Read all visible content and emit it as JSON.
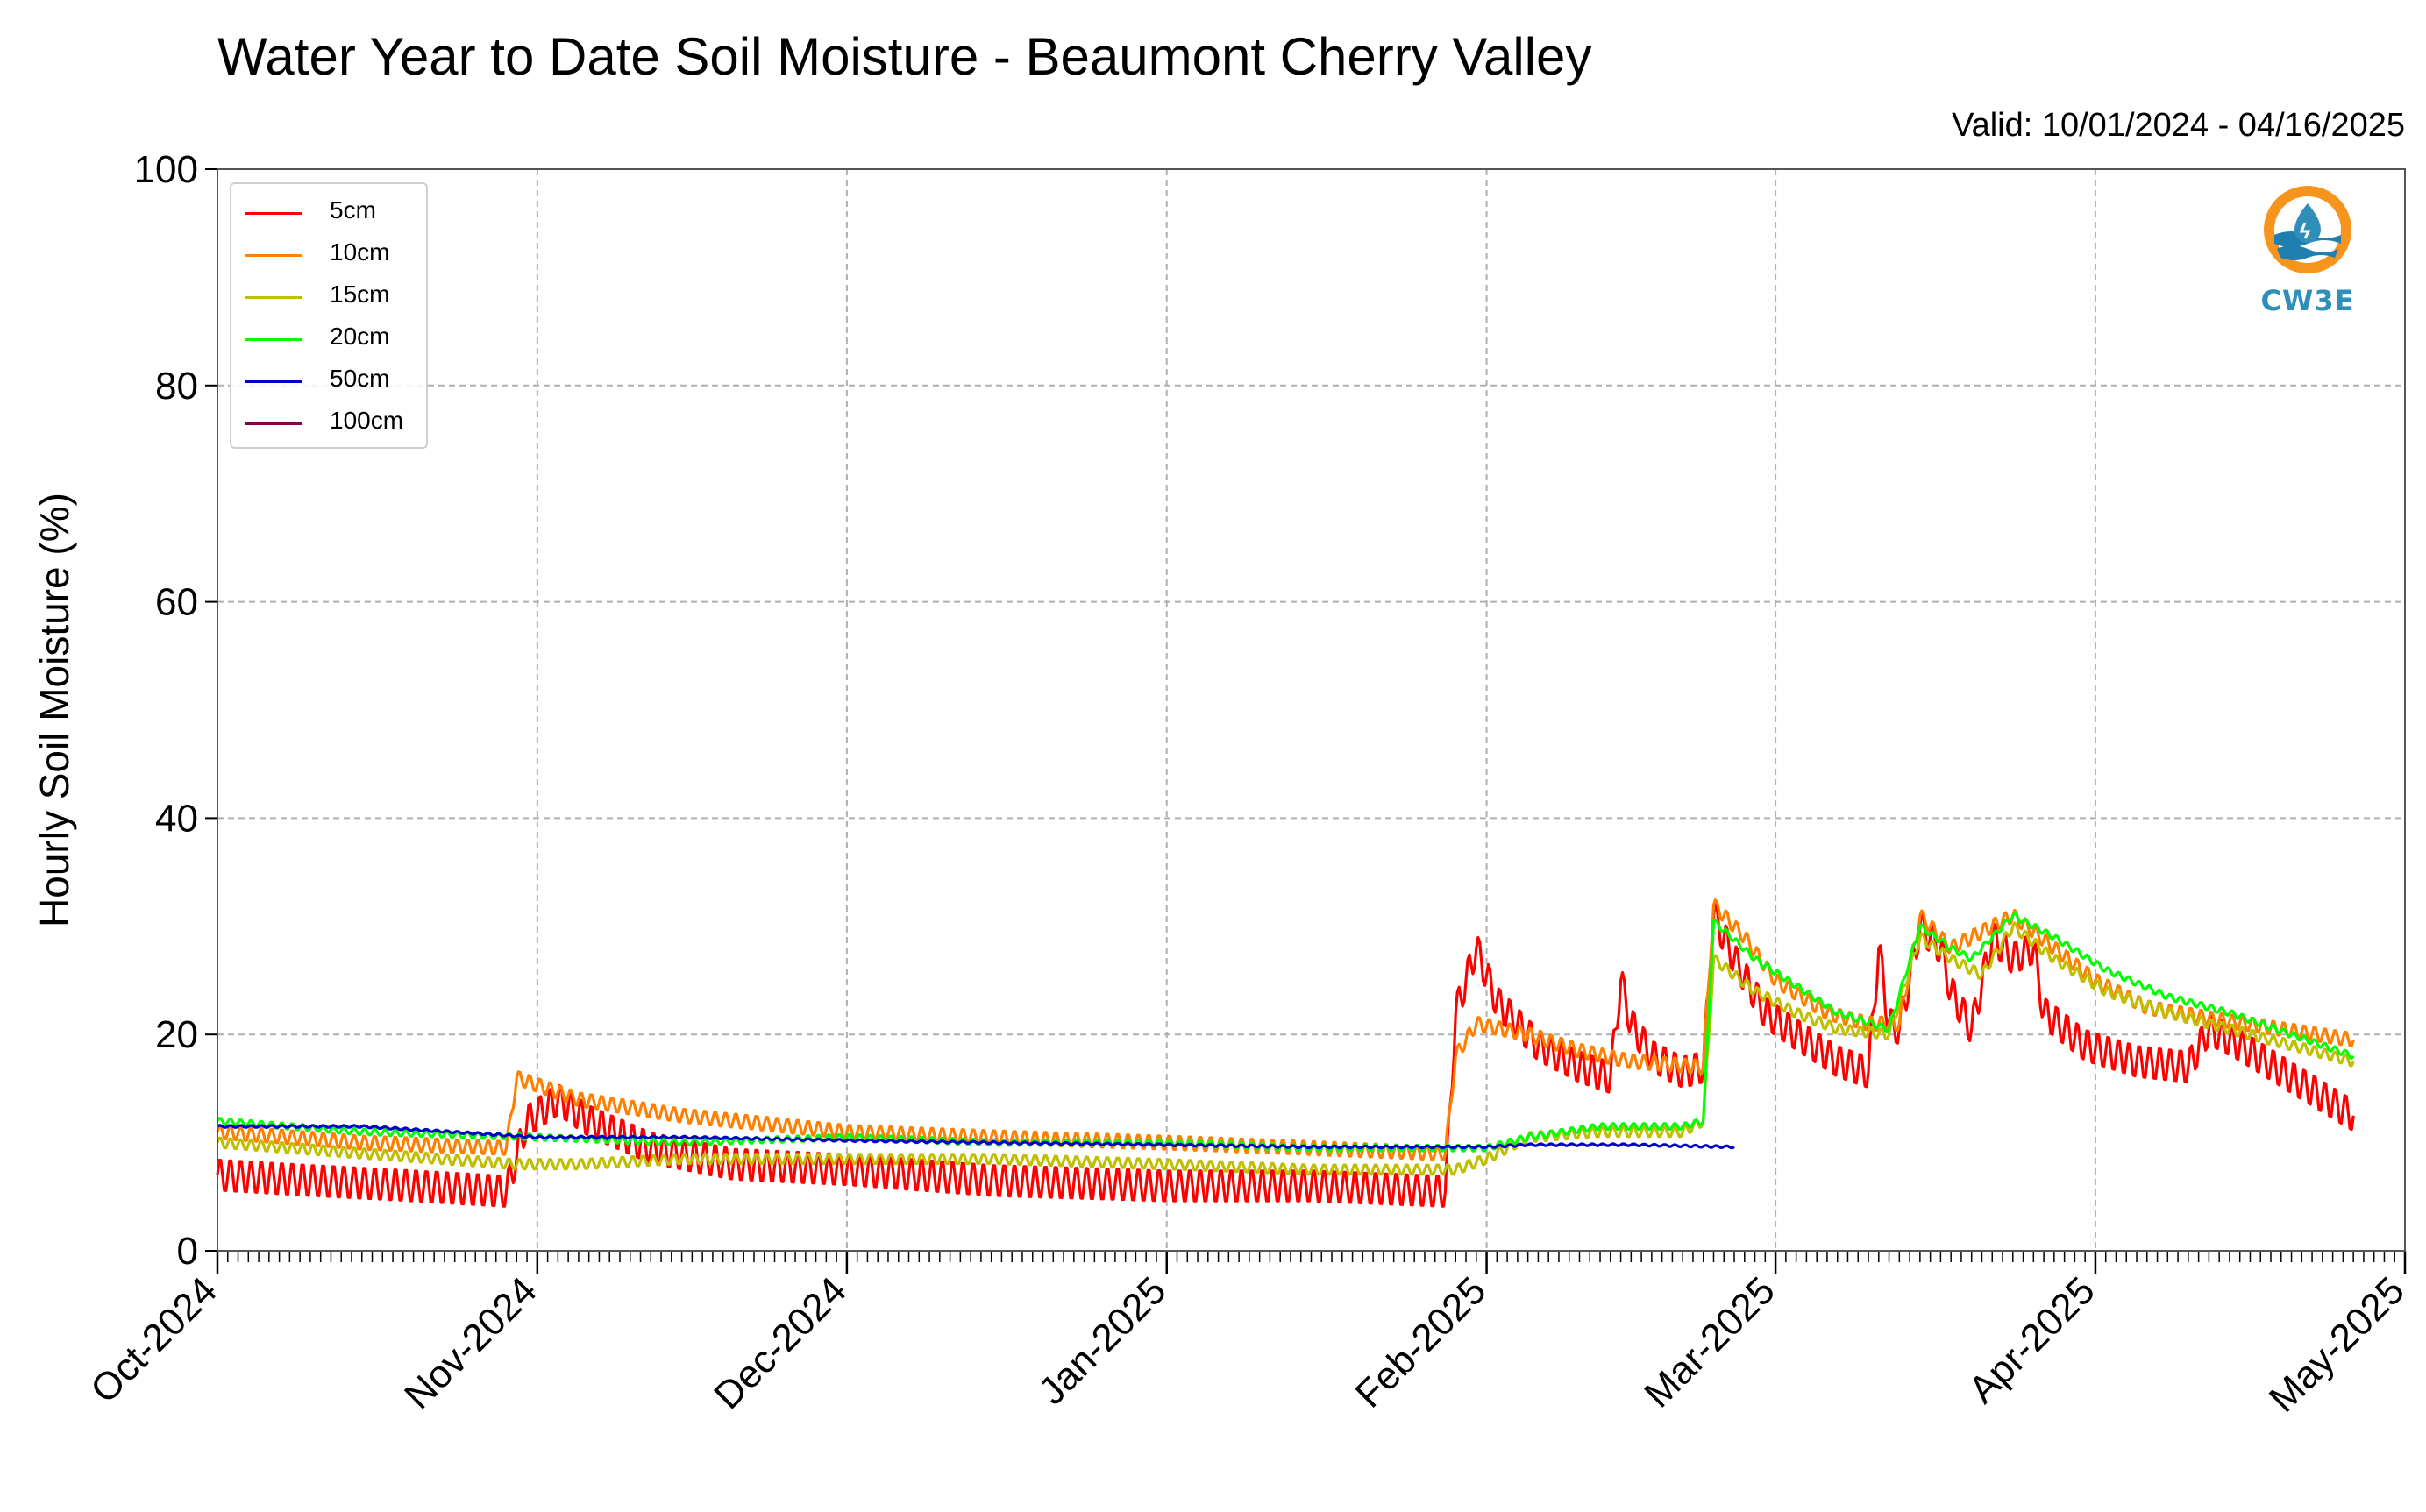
{
  "chart_data": {
    "type": "line",
    "title": "Water Year to Date Soil Moisture - Beaumont Cherry Valley",
    "subtitle": "Valid: 10/01/2024 - 04/16/2025",
    "ylabel": "Hourly Soil Moisture (%)",
    "xlabel": "",
    "ylim": [
      0,
      100
    ],
    "yticks": [
      0,
      20,
      40,
      60,
      80,
      100
    ],
    "xlim": [
      "2024-10-01",
      "2025-05-01"
    ],
    "xticks": [
      {
        "date": "2024-10-01",
        "label": "Oct-2024"
      },
      {
        "date": "2024-11-01",
        "label": "Nov-2024"
      },
      {
        "date": "2024-12-01",
        "label": "Dec-2024"
      },
      {
        "date": "2025-01-01",
        "label": "Jan-2025"
      },
      {
        "date": "2025-02-01",
        "label": "Feb-2025"
      },
      {
        "date": "2025-03-01",
        "label": "Mar-2025"
      },
      {
        "date": "2025-04-01",
        "label": "Apr-2025"
      },
      {
        "date": "2025-05-01",
        "label": "May-2025"
      }
    ],
    "grid": true,
    "legend_position": "top-left",
    "series": [
      {
        "name": "5cm",
        "color": "#ff0000",
        "points": [
          [
            "2024-10-01",
            7
          ],
          [
            "2024-10-10",
            6.5
          ],
          [
            "2024-10-20",
            6
          ],
          [
            "2024-10-29",
            5.5
          ],
          [
            "2024-10-31",
            12
          ],
          [
            "2024-11-03",
            14
          ],
          [
            "2024-11-06",
            12
          ],
          [
            "2024-11-12",
            9.5
          ],
          [
            "2024-11-20",
            8
          ],
          [
            "2024-12-01",
            7.5
          ],
          [
            "2024-12-15",
            6.5
          ],
          [
            "2025-01-01",
            6
          ],
          [
            "2025-01-15",
            6
          ],
          [
            "2025-01-28",
            5.5
          ],
          [
            "2025-01-29",
            22
          ],
          [
            "2025-01-31",
            28
          ],
          [
            "2025-02-02",
            23
          ],
          [
            "2025-02-06",
            19
          ],
          [
            "2025-02-10",
            17
          ],
          [
            "2025-02-13",
            16
          ],
          [
            "2025-02-14",
            25
          ],
          [
            "2025-02-15",
            21
          ],
          [
            "2025-02-17",
            18
          ],
          [
            "2025-02-20",
            16.5
          ],
          [
            "2025-02-22",
            17
          ],
          [
            "2025-02-23",
            31
          ],
          [
            "2025-02-25",
            27
          ],
          [
            "2025-02-28",
            22
          ],
          [
            "2025-03-03",
            20
          ],
          [
            "2025-03-07",
            17.5
          ],
          [
            "2025-03-10",
            16.5
          ],
          [
            "2025-03-11",
            28
          ],
          [
            "2025-03-12",
            21
          ],
          [
            "2025-03-13",
            20.5
          ],
          [
            "2025-03-15",
            30
          ],
          [
            "2025-03-17",
            28
          ],
          [
            "2025-03-18",
            24
          ],
          [
            "2025-03-20",
            20.5
          ],
          [
            "2025-03-22",
            29
          ],
          [
            "2025-03-24",
            27
          ],
          [
            "2025-03-26",
            28
          ],
          [
            "2025-03-27",
            22
          ],
          [
            "2025-03-31",
            19
          ],
          [
            "2025-04-05",
            17.5
          ],
          [
            "2025-04-10",
            17
          ],
          [
            "2025-04-12",
            20.5
          ],
          [
            "2025-04-15",
            19
          ],
          [
            "2025-04-20",
            16
          ],
          [
            "2025-04-26",
            12.5
          ]
        ]
      },
      {
        "name": "10cm",
        "color": "#ff8000",
        "points": [
          [
            "2024-10-01",
            11
          ],
          [
            "2024-10-15",
            10
          ],
          [
            "2024-10-29",
            9.5
          ],
          [
            "2024-10-30",
            16
          ],
          [
            "2024-11-05",
            14
          ],
          [
            "2024-11-15",
            12.5
          ],
          [
            "2024-12-01",
            11
          ],
          [
            "2024-12-15",
            10.5
          ],
          [
            "2025-01-01",
            10
          ],
          [
            "2025-01-15",
            9.5
          ],
          [
            "2025-01-28",
            9
          ],
          [
            "2025-01-29",
            18
          ],
          [
            "2025-01-31",
            21
          ],
          [
            "2025-02-05",
            20
          ],
          [
            "2025-02-10",
            18.5
          ],
          [
            "2025-02-15",
            17.5
          ],
          [
            "2025-02-22",
            17
          ],
          [
            "2025-02-23",
            32
          ],
          [
            "2025-02-26",
            29
          ],
          [
            "2025-03-01",
            25
          ],
          [
            "2025-03-06",
            22
          ],
          [
            "2025-03-10",
            21
          ],
          [
            "2025-03-13",
            21
          ],
          [
            "2025-03-15",
            31
          ],
          [
            "2025-03-18",
            28
          ],
          [
            "2025-03-22",
            30
          ],
          [
            "2025-03-24",
            31
          ],
          [
            "2025-03-28",
            28
          ],
          [
            "2025-04-01",
            25
          ],
          [
            "2025-04-06",
            22.5
          ],
          [
            "2025-04-12",
            21.5
          ],
          [
            "2025-04-19",
            20.5
          ],
          [
            "2025-04-26",
            19.5
          ]
        ]
      },
      {
        "name": "15cm",
        "color": "#bfbf00",
        "points": [
          [
            "2024-10-01",
            10
          ],
          [
            "2024-10-15",
            9
          ],
          [
            "2024-10-30",
            8
          ],
          [
            "2024-11-05",
            8
          ],
          [
            "2024-11-15",
            8.5
          ],
          [
            "2024-12-01",
            8.5
          ],
          [
            "2024-12-15",
            8.5
          ],
          [
            "2025-01-01",
            8
          ],
          [
            "2025-01-15",
            7.5
          ],
          [
            "2025-01-29",
            7.5
          ],
          [
            "2025-02-01",
            8.5
          ],
          [
            "2025-02-05",
            10.5
          ],
          [
            "2025-02-12",
            11
          ],
          [
            "2025-02-20",
            11
          ],
          [
            "2025-02-22",
            12
          ],
          [
            "2025-02-23",
            27
          ],
          [
            "2025-02-27",
            24
          ],
          [
            "2025-03-03",
            22
          ],
          [
            "2025-03-07",
            20.5
          ],
          [
            "2025-03-12",
            20
          ],
          [
            "2025-03-15",
            29
          ],
          [
            "2025-03-18",
            27
          ],
          [
            "2025-03-21",
            25.5
          ],
          [
            "2025-03-24",
            30
          ],
          [
            "2025-03-28",
            27
          ],
          [
            "2025-04-02",
            24
          ],
          [
            "2025-04-08",
            22
          ],
          [
            "2025-04-14",
            20.5
          ],
          [
            "2025-04-20",
            19
          ],
          [
            "2025-04-26",
            17.5
          ]
        ]
      },
      {
        "name": "20cm",
        "color": "#00ff00",
        "points": [
          [
            "2024-10-01",
            12
          ],
          [
            "2024-10-15",
            11
          ],
          [
            "2024-11-01",
            10.5
          ],
          [
            "2024-11-15",
            10
          ],
          [
            "2024-12-01",
            10.5
          ],
          [
            "2024-12-15",
            10
          ],
          [
            "2025-01-01",
            10
          ],
          [
            "2025-01-15",
            9.5
          ],
          [
            "2025-01-29",
            9.5
          ],
          [
            "2025-02-01",
            9.5
          ],
          [
            "2025-02-05",
            10.5
          ],
          [
            "2025-02-12",
            11.5
          ],
          [
            "2025-02-20",
            11.5
          ],
          [
            "2025-02-22",
            12
          ],
          [
            "2025-02-23",
            30.5
          ],
          [
            "2025-02-27",
            27
          ],
          [
            "2025-03-03",
            24.5
          ],
          [
            "2025-03-07",
            22
          ],
          [
            "2025-03-12",
            20.5
          ],
          [
            "2025-03-15",
            30
          ],
          [
            "2025-03-18",
            28
          ],
          [
            "2025-03-20",
            27
          ],
          [
            "2025-03-24",
            31
          ],
          [
            "2025-03-28",
            29
          ],
          [
            "2025-04-02",
            26
          ],
          [
            "2025-04-08",
            23.5
          ],
          [
            "2025-04-14",
            22
          ],
          [
            "2025-04-20",
            20
          ],
          [
            "2025-04-26",
            18
          ]
        ]
      },
      {
        "name": "50cm",
        "color": "#0000cc",
        "points": [
          [
            "2024-10-01",
            11.5
          ],
          [
            "2024-10-15",
            11.5
          ],
          [
            "2024-11-01",
            10.5
          ],
          [
            "2024-11-15",
            10.5
          ],
          [
            "2024-12-01",
            10.2
          ],
          [
            "2024-12-15",
            10
          ],
          [
            "2025-01-01",
            9.8
          ],
          [
            "2025-01-15",
            9.6
          ],
          [
            "2025-02-01",
            9.6
          ],
          [
            "2025-02-05",
            9.8
          ],
          [
            "2025-02-15",
            9.8
          ],
          [
            "2025-02-25",
            9.6
          ]
        ]
      },
      {
        "name": "100cm",
        "color": "#8b0045",
        "points": []
      }
    ]
  },
  "logo": {
    "text": "CW3E"
  }
}
